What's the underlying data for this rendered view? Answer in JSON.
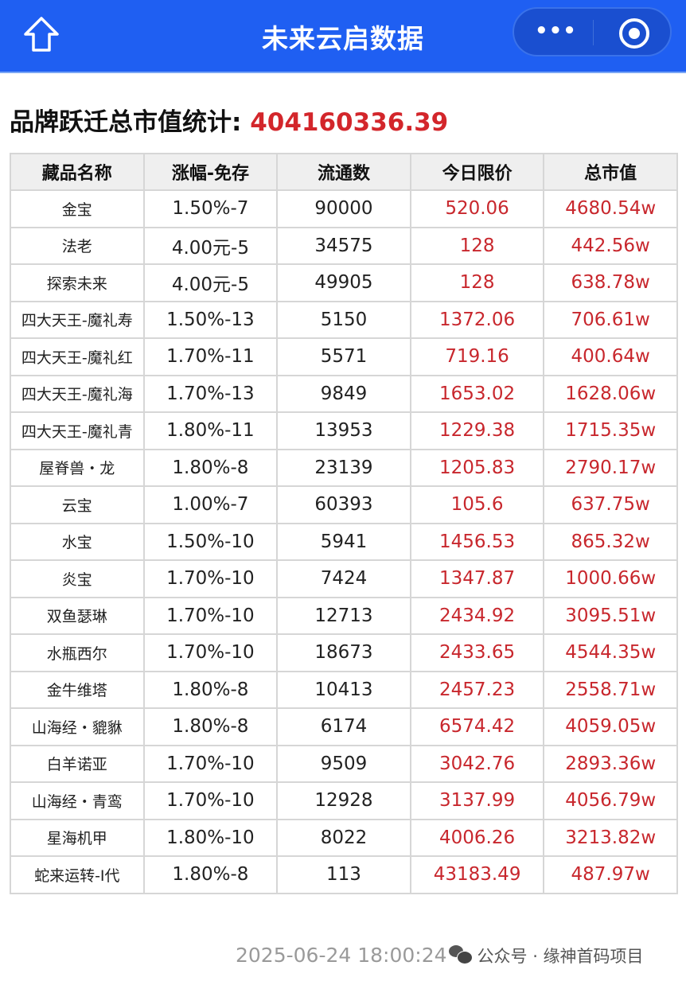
{
  "header": {
    "title": "未来云启数据",
    "more_label": "•••"
  },
  "summary": {
    "label": "品牌跃迁总市值统计:",
    "value": "404160336.39"
  },
  "table": {
    "columns": [
      "藏品名称",
      "涨幅-免存",
      "流通数",
      "今日限价",
      "总市值"
    ],
    "rows": [
      [
        "金宝",
        "1.50%-7",
        "90000",
        "520.06",
        "4680.54w"
      ],
      [
        "法老",
        "4.00元-5",
        "34575",
        "128",
        "442.56w"
      ],
      [
        "探索未来",
        "4.00元-5",
        "49905",
        "128",
        "638.78w"
      ],
      [
        "四大天王-魔礼寿",
        "1.50%-13",
        "5150",
        "1372.06",
        "706.61w"
      ],
      [
        "四大天王-魔礼红",
        "1.70%-11",
        "5571",
        "719.16",
        "400.64w"
      ],
      [
        "四大天王-魔礼海",
        "1.70%-13",
        "9849",
        "1653.02",
        "1628.06w"
      ],
      [
        "四大天王-魔礼青",
        "1.80%-11",
        "13953",
        "1229.38",
        "1715.35w"
      ],
      [
        "屋脊兽・龙",
        "1.80%-8",
        "23139",
        "1205.83",
        "2790.17w"
      ],
      [
        "云宝",
        "1.00%-7",
        "60393",
        "105.6",
        "637.75w"
      ],
      [
        "水宝",
        "1.50%-10",
        "5941",
        "1456.53",
        "865.32w"
      ],
      [
        "炎宝",
        "1.70%-10",
        "7424",
        "1347.87",
        "1000.66w"
      ],
      [
        "双鱼瑟琳",
        "1.70%-10",
        "12713",
        "2434.92",
        "3095.51w"
      ],
      [
        "水瓶西尔",
        "1.70%-10",
        "18673",
        "2433.65",
        "4544.35w"
      ],
      [
        "金牛维塔",
        "1.80%-8",
        "10413",
        "2457.23",
        "2558.71w"
      ],
      [
        "山海经・貔貅",
        "1.80%-8",
        "6174",
        "6574.42",
        "4059.05w"
      ],
      [
        "白羊诺亚",
        "1.70%-10",
        "9509",
        "3042.76",
        "2893.36w"
      ],
      [
        "山海经・青鸾",
        "1.70%-10",
        "12928",
        "3137.99",
        "4056.79w"
      ],
      [
        "星海机甲",
        "1.80%-10",
        "8022",
        "4006.26",
        "3213.82w"
      ],
      [
        "蛇来运转-Ⅰ代",
        "1.80%-8",
        "113",
        "43183.49",
        "487.97w"
      ]
    ]
  },
  "footer": {
    "timestamp": "2025-06-24 18:00:24",
    "watermark": "公众号 · 缘神首码项目"
  },
  "colors": {
    "header_bg": "#1f5ff2",
    "value_red": "#d3262b",
    "price_red": "#c8272d"
  }
}
